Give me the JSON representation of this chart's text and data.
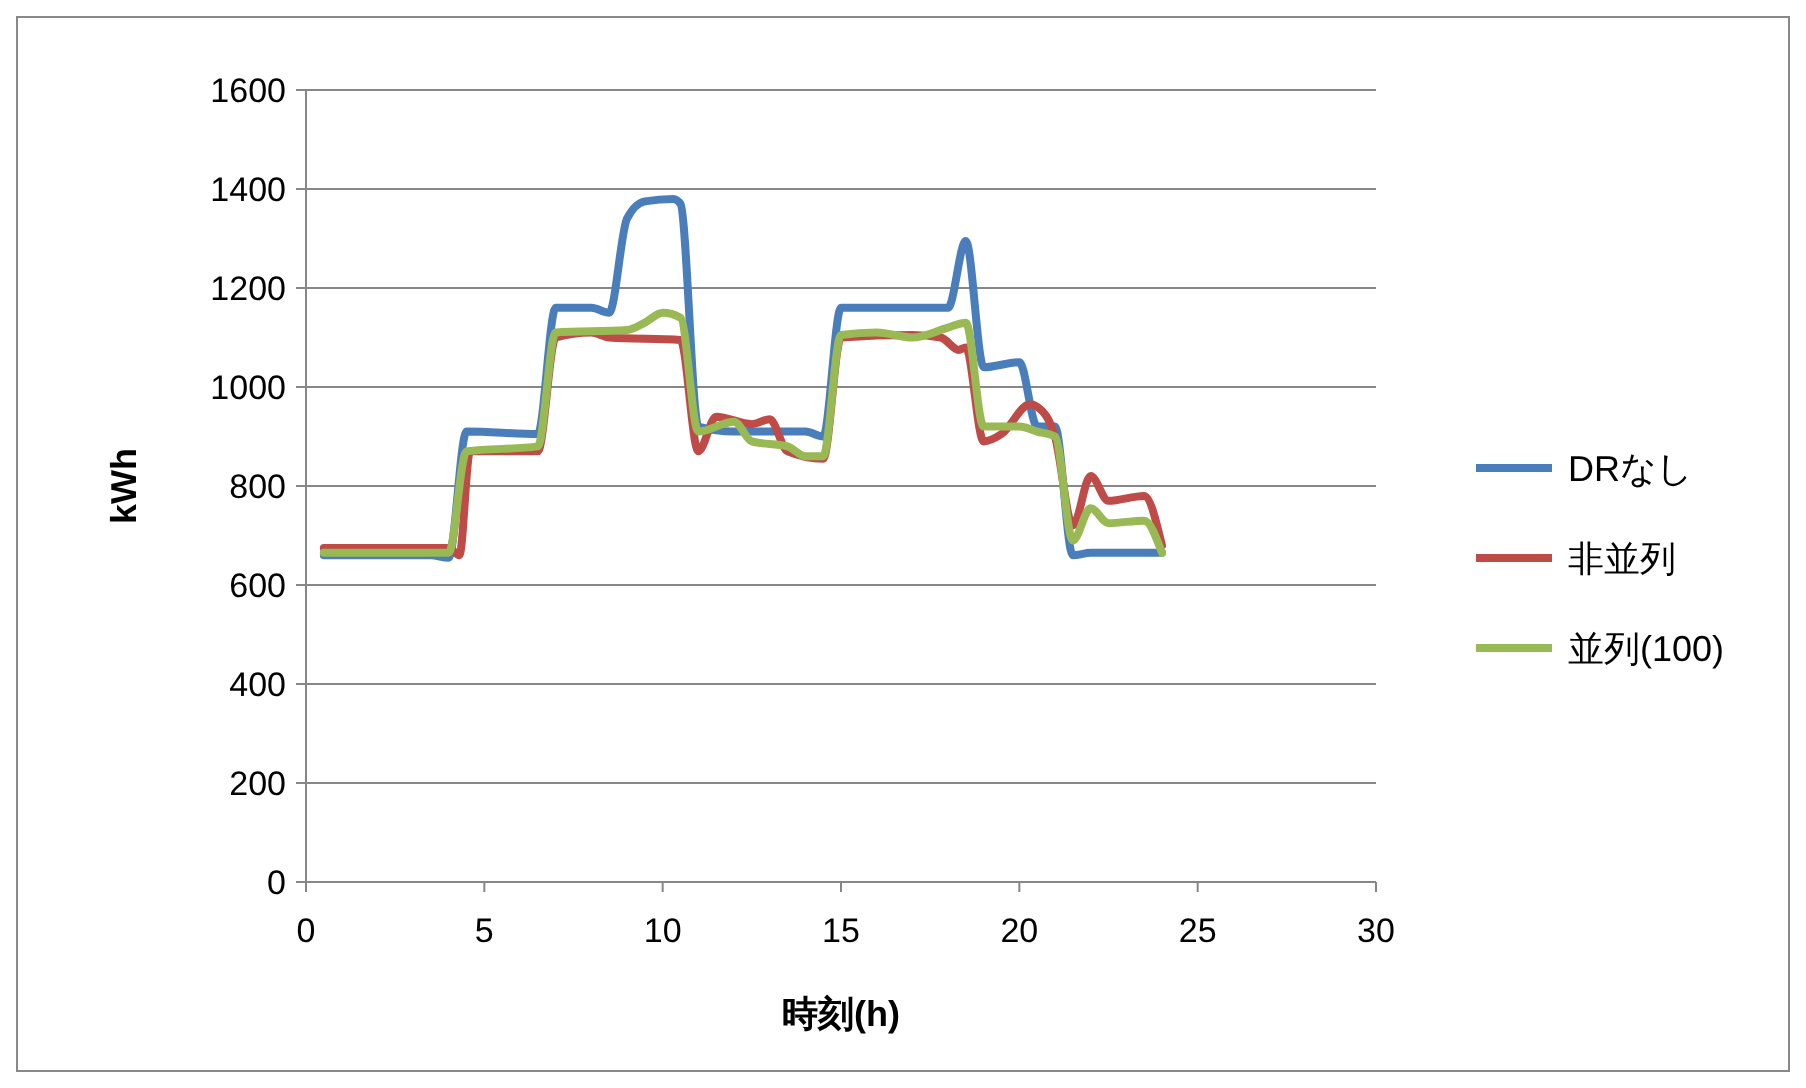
{
  "chart_data": {
    "type": "line",
    "xlabel": "時刻(h)",
    "ylabel": "kWh",
    "xlim": [
      0,
      30
    ],
    "xticks": [
      0,
      5,
      10,
      15,
      20,
      25,
      30
    ],
    "ylim": [
      0,
      1600
    ],
    "yticks": [
      0,
      200,
      400,
      600,
      800,
      1000,
      1200,
      1400,
      1600
    ],
    "grid": "y",
    "legend": "right",
    "marker": "none",
    "line_style": "solid",
    "series": [
      {
        "name": "DRなし",
        "color": "#4a7ebb",
        "x": [
          0.5,
          3.5,
          4,
          4.5,
          6.5,
          7,
          8,
          8.5,
          9,
          9.5,
          10.3,
          10.5,
          11,
          12,
          14,
          14.5,
          15,
          18,
          18.5,
          19,
          20,
          20.5,
          21,
          21.5,
          22,
          24
        ],
        "values": [
          660,
          660,
          655,
          910,
          905,
          1160,
          1160,
          1150,
          1340,
          1375,
          1380,
          1370,
          920,
          910,
          910,
          900,
          1160,
          1160,
          1295,
          1040,
          1050,
          920,
          920,
          660,
          665,
          665
        ]
      },
      {
        "name": "非並列",
        "color": "#be4b48",
        "x": [
          0.5,
          4,
          4.3,
          4.6,
          6.5,
          7,
          8,
          8.5,
          10.5,
          11,
          11.5,
          12.5,
          13,
          13.5,
          14.5,
          15,
          17,
          17.8,
          18.3,
          18.5,
          19,
          19.5,
          20.3,
          20.5,
          21,
          21.5,
          22,
          22.5,
          23.5,
          24
        ],
        "values": [
          675,
          675,
          660,
          870,
          870,
          1100,
          1110,
          1100,
          1095,
          870,
          940,
          925,
          935,
          870,
          855,
          1100,
          1105,
          1100,
          1075,
          1080,
          890,
          905,
          965,
          960,
          900,
          720,
          820,
          770,
          780,
          680
        ]
      },
      {
        "name": "並列(100)",
        "color": "#98b954",
        "x": [
          0.5,
          4,
          4.5,
          6.5,
          7,
          9,
          9.5,
          10,
          10.5,
          11,
          12,
          12.5,
          13.5,
          14,
          14.5,
          15,
          16,
          17,
          18,
          18.5,
          19,
          20,
          20.5,
          21,
          21.5,
          22,
          22.5,
          23.5,
          24
        ],
        "values": [
          665,
          665,
          870,
          880,
          1110,
          1115,
          1130,
          1150,
          1140,
          910,
          930,
          890,
          880,
          860,
          860,
          1105,
          1110,
          1100,
          1120,
          1130,
          920,
          920,
          910,
          900,
          690,
          755,
          725,
          730,
          665
        ]
      }
    ]
  }
}
